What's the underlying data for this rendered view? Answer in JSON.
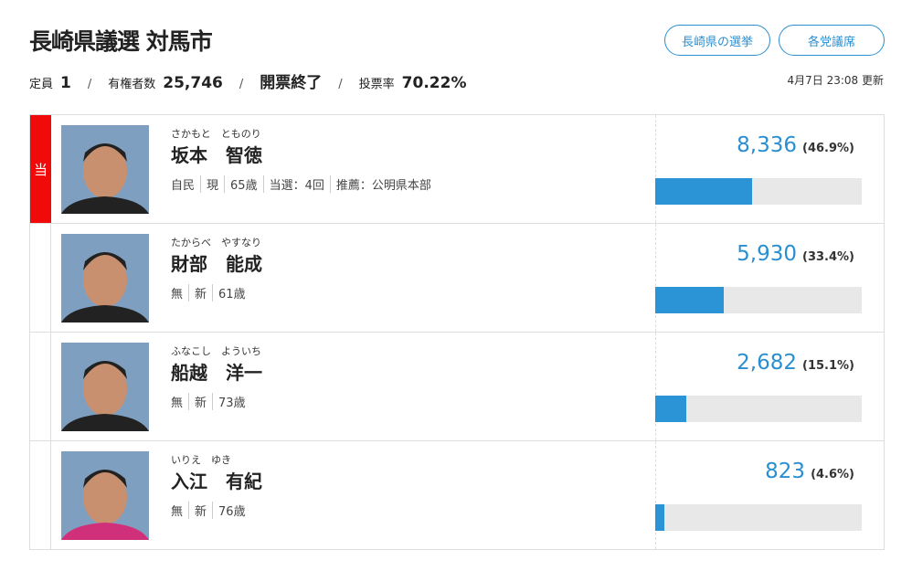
{
  "title": "長崎県議選 対馬市",
  "buttons": {
    "prefecture": "長崎県の選挙",
    "party": "各党議席"
  },
  "stats": {
    "seats_label": "定員",
    "seats": "1",
    "voters_label": "有権者数",
    "voters": "25,746",
    "status": "開票終了",
    "turnout_label": "投票率",
    "turnout": "70.22%",
    "sep": "/"
  },
  "updated": "4月7日 23:08 更新",
  "winner_mark": "当",
  "colors": {
    "accent": "#2a8fd0",
    "winner": "#f00a0a",
    "bar": "#2a94d6"
  },
  "candidates": [
    {
      "kana": "さかもと　とものり",
      "name": "坂本　智徳",
      "info": [
        "自民",
        "現",
        "65歳",
        "当選：4回",
        "推薦：公明県本部"
      ],
      "votes": "8,336",
      "pct": "(46.9%)",
      "share": 46.9,
      "winner": true
    },
    {
      "kana": "たからべ　やすなり",
      "name": "財部　能成",
      "info": [
        "無",
        "新",
        "61歳"
      ],
      "votes": "5,930",
      "pct": "(33.4%)",
      "share": 33.4,
      "winner": false
    },
    {
      "kana": "ふなこし　よういち",
      "name": "船越　洋一",
      "info": [
        "無",
        "新",
        "73歳"
      ],
      "votes": "2,682",
      "pct": "(15.1%)",
      "share": 15.1,
      "winner": false
    },
    {
      "kana": "いりえ　ゆき",
      "name": "入江　有紀",
      "info": [
        "無",
        "新",
        "76歳"
      ],
      "votes": "823",
      "pct": "(4.6%)",
      "share": 4.6,
      "winner": false
    }
  ]
}
